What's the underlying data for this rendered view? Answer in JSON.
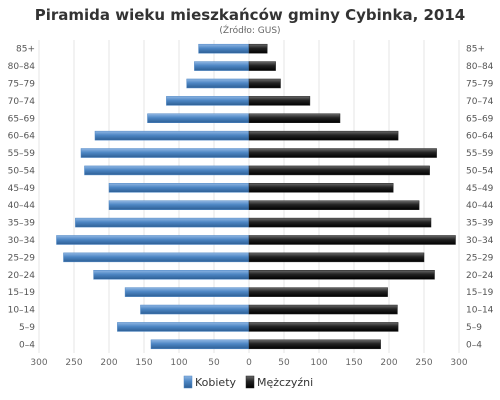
{
  "chart_data": {
    "type": "bar",
    "orientation": "horizontal-population-pyramid",
    "title": "Piramida wieku mieszkańców gminy Cybinka, 2014",
    "subtitle": "(Źródło: GUS)",
    "categories": [
      "85+",
      "80–84",
      "75–79",
      "70–74",
      "65–69",
      "60–64",
      "55–59",
      "50–54",
      "45–49",
      "40–44",
      "35–39",
      "30–34",
      "25–29",
      "20–24",
      "15–19",
      "10–14",
      "5–9",
      "0–4"
    ],
    "series": [
      {
        "name": "Kobiety",
        "side": "left",
        "color": "#4d86c4",
        "values": [
          72,
          78,
          89,
          118,
          145,
          220,
          240,
          235,
          200,
          200,
          248,
          275,
          265,
          222,
          177,
          155,
          188,
          140
        ]
      },
      {
        "name": "Mężczyźni",
        "side": "right",
        "color": "#222222",
        "values": [
          26,
          38,
          45,
          87,
          130,
          213,
          268,
          258,
          206,
          243,
          260,
          295,
          250,
          265,
          198,
          212,
          213,
          188
        ]
      }
    ],
    "xlim": [
      -300,
      300
    ],
    "xticks": [
      300,
      250,
      200,
      150,
      100,
      50,
      0,
      50,
      100,
      150,
      200,
      250,
      300
    ],
    "grid": true,
    "legend": "bottom-center"
  }
}
